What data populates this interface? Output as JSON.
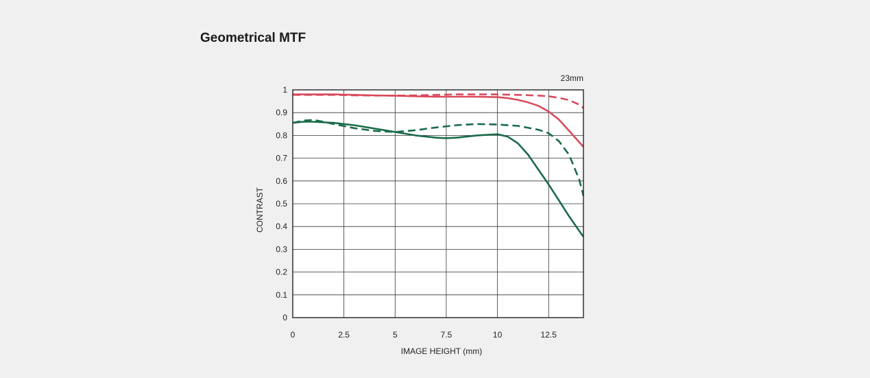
{
  "page": {
    "title": "Geometrical MTF"
  },
  "chart_data": {
    "type": "line",
    "title": "",
    "subtitle": "23mm",
    "xlabel": "IMAGE HEIGHT (mm)",
    "ylabel": "CONTRAST",
    "xlim": [
      0,
      14.2
    ],
    "ylim": [
      0,
      1
    ],
    "x_ticks": [
      0,
      2.5,
      5,
      7.5,
      10,
      12.5
    ],
    "x_tick_labels": [
      "0",
      "2.5",
      "5",
      "7.5",
      "10",
      "12.5"
    ],
    "y_ticks": [
      0,
      0.1,
      0.2,
      0.3,
      0.4,
      0.5,
      0.6,
      0.7,
      0.8,
      0.9,
      1
    ],
    "y_tick_labels": [
      "0",
      "0.1",
      "0.2",
      "0.3",
      "0.4",
      "0.5",
      "0.6",
      "0.7",
      "0.8",
      "0.9",
      "1"
    ],
    "grid": true,
    "series": [
      {
        "color": "#d94a5c",
        "dash": "solid",
        "x": [
          0,
          1,
          2,
          3,
          4,
          5,
          6,
          7,
          8,
          9,
          10,
          10.5,
          11,
          11.5,
          12,
          12.5,
          13,
          13.5,
          14,
          14.2
        ],
        "y": [
          0.98,
          0.98,
          0.98,
          0.978,
          0.976,
          0.974,
          0.972,
          0.97,
          0.97,
          0.97,
          0.968,
          0.964,
          0.956,
          0.945,
          0.93,
          0.905,
          0.87,
          0.82,
          0.77,
          0.75
        ]
      },
      {
        "color": "#d94a5c",
        "dash": "dashed",
        "x": [
          0,
          1,
          2,
          3,
          4,
          5,
          6,
          7,
          8,
          9,
          10,
          11,
          12,
          12.5,
          13,
          13.5,
          14,
          14.2
        ],
        "y": [
          0.978,
          0.978,
          0.978,
          0.976,
          0.975,
          0.975,
          0.976,
          0.978,
          0.98,
          0.98,
          0.98,
          0.978,
          0.975,
          0.972,
          0.965,
          0.955,
          0.935,
          0.92
        ]
      },
      {
        "color": "#1a6b4a",
        "dash": "solid",
        "x": [
          0,
          0.5,
          1,
          2,
          3,
          4,
          5,
          6,
          7,
          7.5,
          8,
          9,
          10,
          10.5,
          11,
          11.5,
          12,
          12.5,
          13,
          13.5,
          14,
          14.2
        ],
        "y": [
          0.855,
          0.86,
          0.86,
          0.855,
          0.845,
          0.83,
          0.815,
          0.8,
          0.79,
          0.788,
          0.79,
          0.8,
          0.805,
          0.795,
          0.765,
          0.715,
          0.65,
          0.585,
          0.515,
          0.445,
          0.38,
          0.355
        ]
      },
      {
        "color": "#1a6b4a",
        "dash": "dashed",
        "x": [
          0,
          0.5,
          1,
          1.5,
          2,
          3,
          4,
          5,
          6,
          7,
          8,
          9,
          10,
          11,
          12,
          12.5,
          13,
          13.5,
          14,
          14.2
        ],
        "y": [
          0.855,
          0.865,
          0.868,
          0.86,
          0.85,
          0.832,
          0.82,
          0.815,
          0.823,
          0.835,
          0.845,
          0.85,
          0.848,
          0.842,
          0.825,
          0.81,
          0.775,
          0.715,
          0.605,
          0.535
        ]
      }
    ]
  }
}
